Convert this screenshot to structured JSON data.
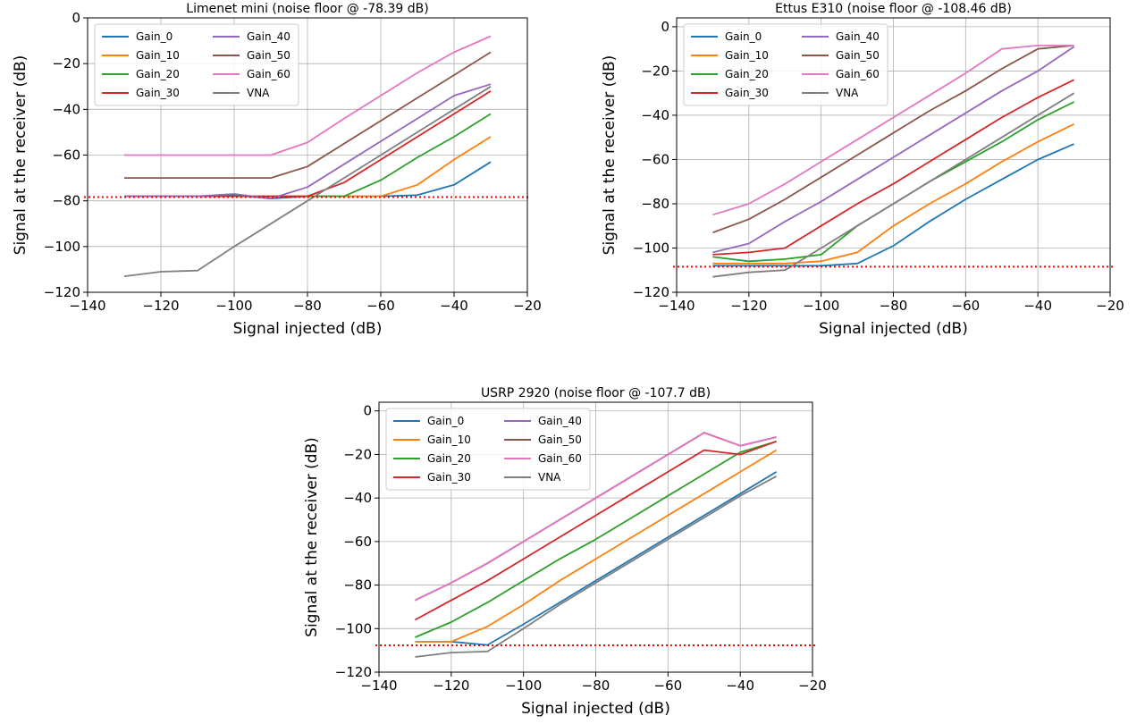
{
  "colors": {
    "Gain_0": "#1f77b4",
    "Gain_10": "#ff7f0e",
    "Gain_20": "#2ca02c",
    "Gain_30": "#d62728",
    "Gain_40": "#9467bd",
    "Gain_50": "#8c564b",
    "Gain_60": "#e377c2",
    "VNA": "#7f7f7f",
    "noise_floor": "#ff0000",
    "grid": "#b0b0b0"
  },
  "chart_data": [
    {
      "type": "line",
      "title": "Limenet mini (noise floor @ -78.39 dB)",
      "xlabel": "Signal injected (dB)",
      "ylabel": "Signal at the receiver (dB)",
      "xlim": [
        -140,
        -20
      ],
      "ylim": [
        -120,
        0
      ],
      "xticks": [
        -140,
        -120,
        -100,
        -80,
        -60,
        -40,
        -20
      ],
      "yticks": [
        -120,
        -100,
        -80,
        -60,
        -40,
        -20,
        0
      ],
      "grid": true,
      "legend": "upper-left",
      "noise_floor": -78.39,
      "x": [
        -130,
        -120,
        -110,
        -100,
        -90,
        -80,
        -70,
        -60,
        -50,
        -40,
        -30
      ],
      "series": [
        {
          "name": "Gain_0",
          "values": [
            -78,
            -78,
            -78,
            -77.5,
            -79,
            -78,
            -78,
            -78,
            -77.5,
            -73,
            -63
          ]
        },
        {
          "name": "Gain_10",
          "values": [
            -78,
            -78,
            -78,
            -78,
            -78,
            -78,
            -78,
            -78,
            -73,
            -62,
            -52
          ]
        },
        {
          "name": "Gain_20",
          "values": [
            -78,
            -78,
            -78,
            -78,
            -78,
            -78,
            -78,
            -71,
            -61,
            -52,
            -42
          ]
        },
        {
          "name": "Gain_30",
          "values": [
            -78,
            -78,
            -78,
            -78,
            -78,
            -78,
            -72,
            -62,
            -52,
            -42,
            -32
          ]
        },
        {
          "name": "Gain_40",
          "values": [
            -78,
            -78,
            -78,
            -77,
            -79,
            -74,
            -64,
            -54,
            -44,
            -34,
            -29
          ]
        },
        {
          "name": "Gain_50",
          "values": [
            -70,
            -70,
            -70,
            -70,
            -70,
            -65,
            -55,
            -45,
            -35,
            -25,
            -15
          ]
        },
        {
          "name": "Gain_60",
          "values": [
            -60,
            -60,
            -60,
            -60,
            -60,
            -54.5,
            -44,
            -34,
            -24,
            -15,
            -8
          ]
        },
        {
          "name": "VNA",
          "values": [
            -113,
            -111,
            -110.5,
            -100,
            -90,
            -80,
            -70,
            -60,
            -50,
            -40,
            -30
          ]
        }
      ]
    },
    {
      "type": "line",
      "title": "Ettus E310 (noise floor @ -108.46 dB)",
      "xlabel": "Signal injected (dB)",
      "ylabel": "Signal at the receiver (dB)",
      "xlim": [
        -140,
        -20
      ],
      "ylim": [
        -120,
        4
      ],
      "xticks": [
        -140,
        -120,
        -100,
        -80,
        -60,
        -40,
        -20
      ],
      "yticks": [
        -120,
        -100,
        -80,
        -60,
        -40,
        -20,
        0
      ],
      "grid": true,
      "legend": "upper-left",
      "noise_floor": -108.46,
      "x": [
        -130,
        -120,
        -110,
        -100,
        -90,
        -80,
        -70,
        -60,
        -50,
        -40,
        -30
      ],
      "series": [
        {
          "name": "Gain_0",
          "values": [
            -108,
            -108,
            -108,
            -108,
            -107,
            -99,
            -88,
            -78,
            -69,
            -60,
            -53
          ]
        },
        {
          "name": "Gain_10",
          "values": [
            -107,
            -107,
            -107,
            -106,
            -102,
            -90,
            -80,
            -71,
            -61,
            -52,
            -44
          ]
        },
        {
          "name": "Gain_20",
          "values": [
            -104,
            -106,
            -105,
            -103,
            -90,
            -80,
            -70,
            -61,
            -52,
            -42,
            -34
          ]
        },
        {
          "name": "Gain_30",
          "values": [
            -103,
            -102,
            -100,
            -90,
            -80,
            -71,
            -61,
            -51,
            -41,
            -32,
            -24
          ]
        },
        {
          "name": "Gain_40",
          "values": [
            -102,
            -98,
            -88,
            -79,
            -69,
            -59,
            -49,
            -39,
            -29,
            -20,
            -9
          ]
        },
        {
          "name": "Gain_50",
          "values": [
            -93,
            -87,
            -78,
            -68,
            -58,
            -48,
            -38,
            -29,
            -19,
            -10,
            -8.5
          ]
        },
        {
          "name": "Gain_60",
          "values": [
            -85,
            -80,
            -71,
            -61,
            -51,
            -41,
            -31,
            -21,
            -10,
            -8.5,
            -8.5
          ]
        },
        {
          "name": "VNA",
          "values": [
            -113,
            -111,
            -110,
            -100,
            -90,
            -80,
            -70,
            -60,
            -50,
            -40,
            -30
          ]
        }
      ]
    },
    {
      "type": "line",
      "title": "USRP 2920 (noise floor @ -107.7 dB)",
      "xlabel": "Signal injected (dB)",
      "ylabel": "Signal at the receiver (dB)",
      "xlim": [
        -140,
        -20
      ],
      "ylim": [
        -120,
        4
      ],
      "xticks": [
        -140,
        -120,
        -100,
        -80,
        -60,
        -40,
        -20
      ],
      "yticks": [
        -120,
        -100,
        -80,
        -60,
        -40,
        -20,
        0
      ],
      "grid": true,
      "legend": "upper-left",
      "noise_floor": -107.7,
      "x": [
        -130,
        -120,
        -110,
        -100,
        -90,
        -80,
        -70,
        -60,
        -50,
        -40,
        -30
      ],
      "series": [
        {
          "name": "Gain_0",
          "values": [
            -106,
            -106,
            -107.5,
            -98,
            -88,
            -78,
            -68,
            -58,
            -48,
            -38,
            -28
          ]
        },
        {
          "name": "Gain_10",
          "values": [
            -106,
            -106,
            -99,
            -89,
            -78,
            -68,
            -58,
            -48,
            -38,
            -28,
            -18
          ]
        },
        {
          "name": "Gain_20",
          "values": [
            -104,
            -97,
            -88,
            -78,
            -68,
            -59,
            -49,
            -39,
            -29,
            -19,
            -14
          ]
        },
        {
          "name": "Gain_30",
          "values": [
            -96,
            -87,
            -78,
            -68,
            -58,
            -48,
            -38,
            -28,
            -18,
            -20,
            -14
          ]
        },
        {
          "name": "Gain_40",
          "values": [
            -87,
            -79,
            -70,
            -60,
            -50,
            -40,
            -30,
            -20,
            -10,
            -16,
            -12
          ]
        },
        {
          "name": "Gain_50",
          "values": [
            -87,
            -79,
            -70,
            -60,
            -50,
            -40,
            -30,
            -20,
            -10,
            -16,
            -12
          ]
        },
        {
          "name": "Gain_60",
          "values": [
            -87,
            -79,
            -70,
            -60,
            -50,
            -40,
            -30,
            -20,
            -10,
            -16,
            -12
          ]
        },
        {
          "name": "VNA",
          "values": [
            -113,
            -111,
            -110.5,
            -100,
            -89,
            -79,
            -69,
            -59,
            -49,
            -39,
            -30
          ]
        }
      ]
    }
  ]
}
